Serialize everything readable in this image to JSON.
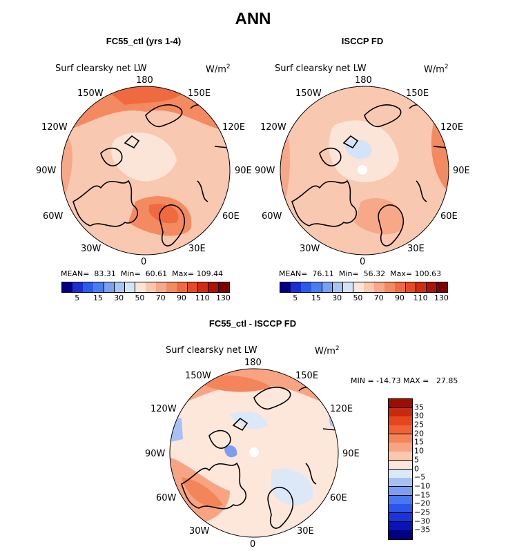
{
  "title": "ANN",
  "colors": {
    "scale": [
      "#000080",
      "#1a2fd0",
      "#2a5ce8",
      "#4a7ef0",
      "#7aa0f0",
      "#a8c4f4",
      "#d4e4f8",
      "#fbe4d8",
      "#f9c8b0",
      "#f7a888",
      "#f48a60",
      "#ef6a40",
      "#e64a22",
      "#d12c12",
      "#b01008",
      "#800000"
    ],
    "diff": [
      "#000080",
      "#0a14b4",
      "#1a34dc",
      "#2a54ec",
      "#4a76f0",
      "#7c9ef2",
      "#a8c0f4",
      "#dce8f8",
      "#fde6da",
      "#fbc8ae",
      "#f8a482",
      "#f4845a",
      "#ee6438",
      "#e4461e",
      "#c82a10",
      "#a00c00"
    ],
    "coast": "#000000"
  },
  "panels": [
    {
      "heading": "FC55_ctl (yrs 1-4)",
      "variable": "Surf clearsky net LW",
      "units": "W/m",
      "units_exp": "2",
      "stats": {
        "mean_label": "MEAN=",
        "mean": "83.31",
        "min_label": "Min=",
        "min": "60.61",
        "max_label": "Max=",
        "max": "109.44"
      },
      "lon_labels": {
        "top": "180",
        "bottom": "0",
        "w150": "150W",
        "e150": "150E",
        "w120": "120W",
        "e120": "120E",
        "w90": "90W",
        "e90": "90E",
        "w60": "60W",
        "e60": "60E",
        "w30": "30W",
        "e30": "30E"
      },
      "colorbar_ticks": [
        "5",
        "15",
        "30",
        "50",
        "70",
        "90",
        "110",
        "130"
      ]
    },
    {
      "heading": "ISCCP FD",
      "variable": "Surf clearsky net LW",
      "units": "W/m",
      "units_exp": "2",
      "stats": {
        "mean_label": "MEAN=",
        "mean": "76.11",
        "min_label": "Min=",
        "min": "56.32",
        "max_label": "Max=",
        "max": "100.63"
      },
      "lon_labels": {
        "top": "180",
        "bottom": "0",
        "w150": "150W",
        "e150": "150E",
        "w120": "120W",
        "e120": "120E",
        "w90": "90W",
        "e90": "90E",
        "w60": "60W",
        "e60": "60E",
        "w30": "30W",
        "e30": "30E"
      },
      "colorbar_ticks": [
        "5",
        "15",
        "30",
        "50",
        "70",
        "90",
        "110",
        "130"
      ]
    },
    {
      "heading": "FC55_ctl - ISCCP FD",
      "variable": "Surf clearsky net LW",
      "units": "W/m",
      "units_exp": "2",
      "stats_line": "MIN = -14.73 MAX =   27.85",
      "lon_labels": {
        "top": "180",
        "bottom": "0",
        "w150": "150W",
        "e150": "150E",
        "w120": "120W",
        "e120": "120E",
        "w90": "90W",
        "e90": "90E",
        "w60": "60W",
        "e60": "60E",
        "w30": "30W",
        "e30": "30E"
      },
      "colorbar_ticks": [
        "35",
        "30",
        "25",
        "20",
        "15",
        "10",
        "5",
        "0",
        "−5",
        "−10",
        "−15",
        "−20",
        "−25",
        "−30",
        "−35"
      ]
    }
  ],
  "chart_data": [
    {
      "type": "heatmap",
      "projection": "north polar stereographic",
      "title": "FC55_ctl (yrs 1-4)",
      "variable": "Surf clearsky net LW",
      "units": "W/m2",
      "mean": 83.31,
      "min": 60.61,
      "max": 109.44,
      "contour_levels": [
        5,
        15,
        30,
        50,
        70,
        90,
        110,
        130
      ]
    },
    {
      "type": "heatmap",
      "projection": "north polar stereographic",
      "title": "ISCCP FD",
      "variable": "Surf clearsky net LW",
      "units": "W/m2",
      "mean": 76.11,
      "min": 56.32,
      "max": 100.63,
      "contour_levels": [
        5,
        15,
        30,
        50,
        70,
        90,
        110,
        130
      ]
    },
    {
      "type": "heatmap",
      "projection": "north polar stereographic",
      "title": "FC55_ctl - ISCCP FD",
      "variable": "Surf clearsky net LW",
      "units": "W/m2",
      "min": -14.73,
      "max": 27.85,
      "contour_levels": [
        -35,
        -30,
        -25,
        -20,
        -15,
        -10,
        -5,
        0,
        5,
        10,
        15,
        20,
        25,
        30,
        35
      ]
    }
  ]
}
